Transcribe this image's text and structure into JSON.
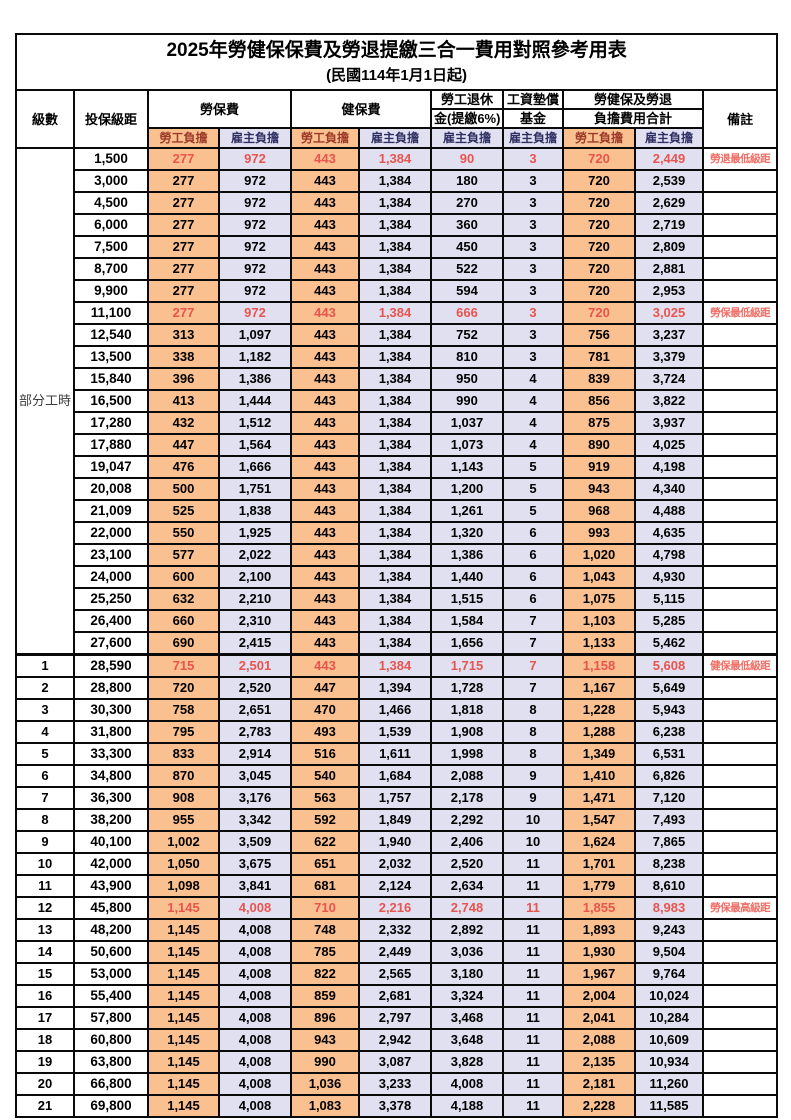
{
  "title": "2025年勞健保保費及勞退提繳三合一費用對照參考用表",
  "subtitle": "(民國114年1月1日起)",
  "columns": {
    "level": "級數",
    "bracket": "投保級距",
    "labor_insurance": "勞保費",
    "health_insurance": "健保費",
    "pension_line1": "勞工退休",
    "pension_line2": "金(提繳6%)",
    "wage_fund_line1": "工資墊償",
    "wage_fund_line2": "基金",
    "total_line1": "勞健保及勞退",
    "total_line2": "負擔費用合計",
    "remark": "備註",
    "employee": "勞工負擔",
    "employer": "雇主負擔"
  },
  "part_time_label": "部分工時",
  "colors": {
    "employee_bg": "#FAC090",
    "employer_bg": "#E1E0F1",
    "highlight_red": "#E8544E",
    "note_red": "#F06E66",
    "header_employee_text": "#9C3A28",
    "header_employer_text": "#2E2F63"
  },
  "rows": [
    {
      "level": "",
      "bracket": "1,500",
      "v": [
        "277",
        "972",
        "443",
        "1,384",
        "90",
        "3",
        "720",
        "2,449"
      ],
      "note": "勞退最低級距",
      "hl": true
    },
    {
      "level": "",
      "bracket": "3,000",
      "v": [
        "277",
        "972",
        "443",
        "1,384",
        "180",
        "3",
        "720",
        "2,539"
      ],
      "note": "",
      "hl": false
    },
    {
      "level": "",
      "bracket": "4,500",
      "v": [
        "277",
        "972",
        "443",
        "1,384",
        "270",
        "3",
        "720",
        "2,629"
      ],
      "note": "",
      "hl": false
    },
    {
      "level": "",
      "bracket": "6,000",
      "v": [
        "277",
        "972",
        "443",
        "1,384",
        "360",
        "3",
        "720",
        "2,719"
      ],
      "note": "",
      "hl": false
    },
    {
      "level": "",
      "bracket": "7,500",
      "v": [
        "277",
        "972",
        "443",
        "1,384",
        "450",
        "3",
        "720",
        "2,809"
      ],
      "note": "",
      "hl": false
    },
    {
      "level": "",
      "bracket": "8,700",
      "v": [
        "277",
        "972",
        "443",
        "1,384",
        "522",
        "3",
        "720",
        "2,881"
      ],
      "note": "",
      "hl": false
    },
    {
      "level": "",
      "bracket": "9,900",
      "v": [
        "277",
        "972",
        "443",
        "1,384",
        "594",
        "3",
        "720",
        "2,953"
      ],
      "note": "",
      "hl": false
    },
    {
      "level": "",
      "bracket": "11,100",
      "v": [
        "277",
        "972",
        "443",
        "1,384",
        "666",
        "3",
        "720",
        "3,025"
      ],
      "note": "勞保最低級距",
      "hl": true
    },
    {
      "level": "",
      "bracket": "12,540",
      "v": [
        "313",
        "1,097",
        "443",
        "1,384",
        "752",
        "3",
        "756",
        "3,237"
      ],
      "note": "",
      "hl": false
    },
    {
      "level": "",
      "bracket": "13,500",
      "v": [
        "338",
        "1,182",
        "443",
        "1,384",
        "810",
        "3",
        "781",
        "3,379"
      ],
      "note": "",
      "hl": false
    },
    {
      "level": "",
      "bracket": "15,840",
      "v": [
        "396",
        "1,386",
        "443",
        "1,384",
        "950",
        "4",
        "839",
        "3,724"
      ],
      "note": "",
      "hl": false
    },
    {
      "level": "",
      "bracket": "16,500",
      "v": [
        "413",
        "1,444",
        "443",
        "1,384",
        "990",
        "4",
        "856",
        "3,822"
      ],
      "note": "",
      "hl": false
    },
    {
      "level": "",
      "bracket": "17,280",
      "v": [
        "432",
        "1,512",
        "443",
        "1,384",
        "1,037",
        "4",
        "875",
        "3,937"
      ],
      "note": "",
      "hl": false
    },
    {
      "level": "",
      "bracket": "17,880",
      "v": [
        "447",
        "1,564",
        "443",
        "1,384",
        "1,073",
        "4",
        "890",
        "4,025"
      ],
      "note": "",
      "hl": false
    },
    {
      "level": "",
      "bracket": "19,047",
      "v": [
        "476",
        "1,666",
        "443",
        "1,384",
        "1,143",
        "5",
        "919",
        "4,198"
      ],
      "note": "",
      "hl": false
    },
    {
      "level": "",
      "bracket": "20,008",
      "v": [
        "500",
        "1,751",
        "443",
        "1,384",
        "1,200",
        "5",
        "943",
        "4,340"
      ],
      "note": "",
      "hl": false
    },
    {
      "level": "",
      "bracket": "21,009",
      "v": [
        "525",
        "1,838",
        "443",
        "1,384",
        "1,261",
        "5",
        "968",
        "4,488"
      ],
      "note": "",
      "hl": false
    },
    {
      "level": "",
      "bracket": "22,000",
      "v": [
        "550",
        "1,925",
        "443",
        "1,384",
        "1,320",
        "6",
        "993",
        "4,635"
      ],
      "note": "",
      "hl": false
    },
    {
      "level": "",
      "bracket": "23,100",
      "v": [
        "577",
        "2,022",
        "443",
        "1,384",
        "1,386",
        "6",
        "1,020",
        "4,798"
      ],
      "note": "",
      "hl": false
    },
    {
      "level": "",
      "bracket": "24,000",
      "v": [
        "600",
        "2,100",
        "443",
        "1,384",
        "1,440",
        "6",
        "1,043",
        "4,930"
      ],
      "note": "",
      "hl": false
    },
    {
      "level": "",
      "bracket": "25,250",
      "v": [
        "632",
        "2,210",
        "443",
        "1,384",
        "1,515",
        "6",
        "1,075",
        "5,115"
      ],
      "note": "",
      "hl": false
    },
    {
      "level": "",
      "bracket": "26,400",
      "v": [
        "660",
        "2,310",
        "443",
        "1,384",
        "1,584",
        "7",
        "1,103",
        "5,285"
      ],
      "note": "",
      "hl": false
    },
    {
      "level": "",
      "bracket": "27,600",
      "v": [
        "690",
        "2,415",
        "443",
        "1,384",
        "1,656",
        "7",
        "1,133",
        "5,462"
      ],
      "note": "",
      "hl": false
    },
    {
      "level": "1",
      "bracket": "28,590",
      "v": [
        "715",
        "2,501",
        "443",
        "1,384",
        "1,715",
        "7",
        "1,158",
        "5,608"
      ],
      "note": "健保最低級距",
      "hl": true,
      "thick_top": true
    },
    {
      "level": "2",
      "bracket": "28,800",
      "v": [
        "720",
        "2,520",
        "447",
        "1,394",
        "1,728",
        "7",
        "1,167",
        "5,649"
      ],
      "note": "",
      "hl": false
    },
    {
      "level": "3",
      "bracket": "30,300",
      "v": [
        "758",
        "2,651",
        "470",
        "1,466",
        "1,818",
        "8",
        "1,228",
        "5,943"
      ],
      "note": "",
      "hl": false
    },
    {
      "level": "4",
      "bracket": "31,800",
      "v": [
        "795",
        "2,783",
        "493",
        "1,539",
        "1,908",
        "8",
        "1,288",
        "6,238"
      ],
      "note": "",
      "hl": false
    },
    {
      "level": "5",
      "bracket": "33,300",
      "v": [
        "833",
        "2,914",
        "516",
        "1,611",
        "1,998",
        "8",
        "1,349",
        "6,531"
      ],
      "note": "",
      "hl": false
    },
    {
      "level": "6",
      "bracket": "34,800",
      "v": [
        "870",
        "3,045",
        "540",
        "1,684",
        "2,088",
        "9",
        "1,410",
        "6,826"
      ],
      "note": "",
      "hl": false
    },
    {
      "level": "7",
      "bracket": "36,300",
      "v": [
        "908",
        "3,176",
        "563",
        "1,757",
        "2,178",
        "9",
        "1,471",
        "7,120"
      ],
      "note": "",
      "hl": false
    },
    {
      "level": "8",
      "bracket": "38,200",
      "v": [
        "955",
        "3,342",
        "592",
        "1,849",
        "2,292",
        "10",
        "1,547",
        "7,493"
      ],
      "note": "",
      "hl": false
    },
    {
      "level": "9",
      "bracket": "40,100",
      "v": [
        "1,002",
        "3,509",
        "622",
        "1,940",
        "2,406",
        "10",
        "1,624",
        "7,865"
      ],
      "note": "",
      "hl": false
    },
    {
      "level": "10",
      "bracket": "42,000",
      "v": [
        "1,050",
        "3,675",
        "651",
        "2,032",
        "2,520",
        "11",
        "1,701",
        "8,238"
      ],
      "note": "",
      "hl": false
    },
    {
      "level": "11",
      "bracket": "43,900",
      "v": [
        "1,098",
        "3,841",
        "681",
        "2,124",
        "2,634",
        "11",
        "1,779",
        "8,610"
      ],
      "note": "",
      "hl": false
    },
    {
      "level": "12",
      "bracket": "45,800",
      "v": [
        "1,145",
        "4,008",
        "710",
        "2,216",
        "2,748",
        "11",
        "1,855",
        "8,983"
      ],
      "note": "勞保最高級距",
      "hl": true
    },
    {
      "level": "13",
      "bracket": "48,200",
      "v": [
        "1,145",
        "4,008",
        "748",
        "2,332",
        "2,892",
        "11",
        "1,893",
        "9,243"
      ],
      "note": "",
      "hl": false
    },
    {
      "level": "14",
      "bracket": "50,600",
      "v": [
        "1,145",
        "4,008",
        "785",
        "2,449",
        "3,036",
        "11",
        "1,930",
        "9,504"
      ],
      "note": "",
      "hl": false
    },
    {
      "level": "15",
      "bracket": "53,000",
      "v": [
        "1,145",
        "4,008",
        "822",
        "2,565",
        "3,180",
        "11",
        "1,967",
        "9,764"
      ],
      "note": "",
      "hl": false
    },
    {
      "level": "16",
      "bracket": "55,400",
      "v": [
        "1,145",
        "4,008",
        "859",
        "2,681",
        "3,324",
        "11",
        "2,004",
        "10,024"
      ],
      "note": "",
      "hl": false
    },
    {
      "level": "17",
      "bracket": "57,800",
      "v": [
        "1,145",
        "4,008",
        "896",
        "2,797",
        "3,468",
        "11",
        "2,041",
        "10,284"
      ],
      "note": "",
      "hl": false
    },
    {
      "level": "18",
      "bracket": "60,800",
      "v": [
        "1,145",
        "4,008",
        "943",
        "2,942",
        "3,648",
        "11",
        "2,088",
        "10,609"
      ],
      "note": "",
      "hl": false
    },
    {
      "level": "19",
      "bracket": "63,800",
      "v": [
        "1,145",
        "4,008",
        "990",
        "3,087",
        "3,828",
        "11",
        "2,135",
        "10,934"
      ],
      "note": "",
      "hl": false
    },
    {
      "level": "20",
      "bracket": "66,800",
      "v": [
        "1,145",
        "4,008",
        "1,036",
        "3,233",
        "4,008",
        "11",
        "2,181",
        "11,260"
      ],
      "note": "",
      "hl": false
    },
    {
      "level": "21",
      "bracket": "69,800",
      "v": [
        "1,145",
        "4,008",
        "1,083",
        "3,378",
        "4,188",
        "11",
        "2,228",
        "11,585"
      ],
      "note": "",
      "hl": false
    }
  ]
}
